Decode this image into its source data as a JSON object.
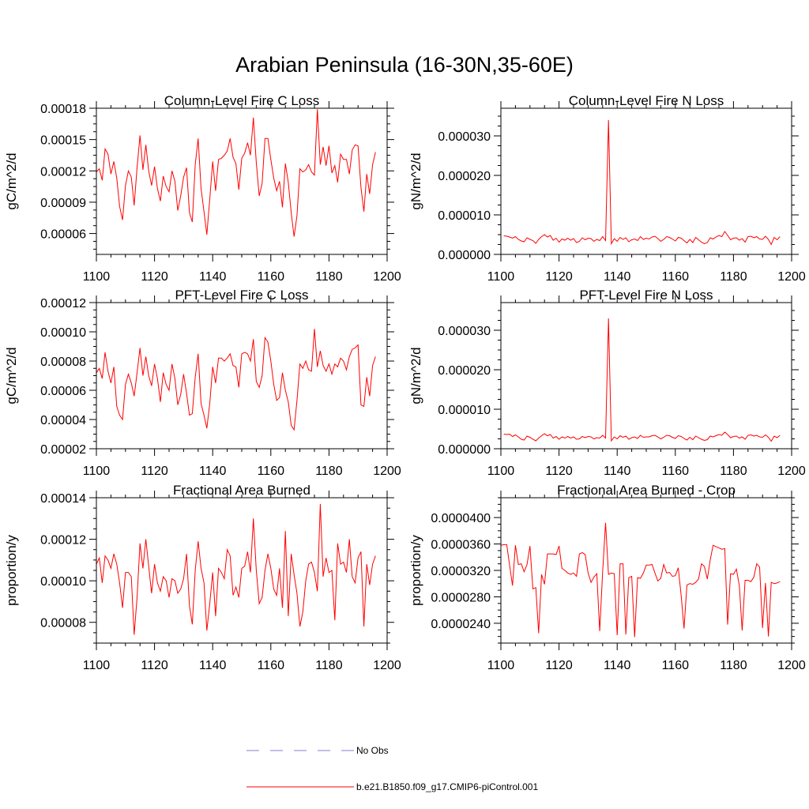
{
  "title": "Arabian Peninsula (16-30N,35-60E)",
  "colors": {
    "model": "#ff0000",
    "obs": "#7f7fd0"
  },
  "legend": [
    {
      "label": "No Obs",
      "style": "dashed"
    },
    {
      "label": "b.e21.B1850.f09_g17.CMIP6-piControl.001",
      "style": "solid"
    }
  ],
  "chart_data": [
    {
      "type": "line",
      "title": "Column-Level Fire C Loss",
      "ylabel": "gC/m^2/d",
      "xlim": [
        1100,
        1200
      ],
      "ylim": [
        4e-05,
        0.00018
      ],
      "xticks": [
        "1100",
        "1120",
        "1140",
        "1160",
        "1180",
        "1200"
      ],
      "yticks": [
        {
          "value": 6e-05,
          "label": "0.00006"
        },
        {
          "value": 9e-05,
          "label": "0.00009"
        },
        {
          "value": 0.00012,
          "label": "0.00012"
        },
        {
          "value": 0.00015,
          "label": "0.00015"
        },
        {
          "value": 0.00018,
          "label": "0.00018"
        }
      ],
      "x_start": 1100,
      "x_step": 1,
      "series": [
        {
          "name": "b.e21.B1850.f09_g17.CMIP6-piControl.001",
          "values": [
            0.000119,
            0.000122,
            0.000111,
            0.000141,
            0.000136,
            0.000117,
            0.000129,
            0.000113,
            8.6e-05,
            7.3e-05,
            0.000106,
            0.00012,
            0.000114,
            8.7e-05,
            0.000123,
            0.000154,
            0.000121,
            0.000145,
            0.00012,
            0.000106,
            0.000124,
            0.000103,
            9.1e-05,
            0.000115,
            0.000105,
            0.0001,
            0.00012,
            0.00011,
            8.2e-05,
            9.6e-05,
            0.000114,
            0.000123,
            8e-05,
            7.1e-05,
            0.000126,
            0.000151,
            0.000103,
            8.1e-05,
            5.9e-05,
            9.3e-05,
            0.000129,
            0.000101,
            0.000131,
            0.000132,
            0.000135,
            0.000139,
            0.000151,
            0.000133,
            0.000127,
            0.000102,
            0.000132,
            0.000137,
            0.000147,
            0.000135,
            0.000171,
            0.000128,
            9.6e-05,
            0.000108,
            0.000151,
            0.000151,
            0.000131,
            0.000113,
            0.000101,
            0.00011,
            8.5e-05,
            0.000127,
            0.000109,
            8e-05,
            5.7e-05,
            7.7e-05,
            0.000122,
            0.000119,
            0.000121,
            0.000126,
            0.000119,
            0.000116,
            0.000179,
            0.000126,
            0.000143,
            0.000125,
            0.000144,
            0.000118,
            0.000125,
            0.000109,
            0.000136,
            0.000131,
            0.000131,
            0.000117,
            0.00014,
            0.000145,
            0.000144,
            0.000104,
            8.1e-05,
            0.000117,
            9.8e-05,
            0.000126,
            0.000138
          ]
        }
      ]
    },
    {
      "type": "line",
      "title": "Column-Level Fire N Loss",
      "ylabel": "gN/m^2/d",
      "xlim": [
        1100,
        1200
      ],
      "ylim": [
        0,
        3.7e-05
      ],
      "xticks": [
        "1100",
        "1120",
        "1140",
        "1160",
        "1180",
        "1200"
      ],
      "yticks": [
        {
          "value": 0,
          "label": "0.000000"
        },
        {
          "value": 1e-05,
          "label": "0.000010"
        },
        {
          "value": 2e-05,
          "label": "0.000020"
        },
        {
          "value": 3e-05,
          "label": "0.000030"
        }
      ],
      "x_start": 1101,
      "x_step": 1,
      "series": [
        {
          "name": "b.e21.B1850.f09_g17.CMIP6-piControl.001",
          "values": [
            4.7e-06,
            4.6e-06,
            4.4e-06,
            4.1e-06,
            4.5e-06,
            3.8e-06,
            3.4e-06,
            3.2e-06,
            4.2e-06,
            3.8e-06,
            3.5e-06,
            2.8e-06,
            3.8e-06,
            4.5e-06,
            5e-06,
            4.4e-06,
            4.8e-06,
            3.6e-06,
            4.1e-06,
            3.1e-06,
            3.9e-06,
            3.6e-06,
            4.1e-06,
            3.6e-06,
            4e-06,
            3e-06,
            3.3e-06,
            4.2e-06,
            3.7e-06,
            4.1e-06,
            4e-06,
            3.3e-06,
            3.8e-06,
            3.5e-06,
            4.5e-06,
            3.5e-06,
            3.4e-05,
            2.7e-06,
            4e-06,
            3.3e-06,
            4.3e-06,
            3.8e-06,
            4.2e-06,
            3.2e-06,
            3.7e-06,
            3.9e-06,
            3.5e-06,
            4.5e-06,
            3.8e-06,
            4.1e-06,
            3.9e-06,
            4.4e-06,
            4.6e-06,
            4e-06,
            3.3e-06,
            3.8e-06,
            4.5e-06,
            4.3e-06,
            3.9e-06,
            3.4e-06,
            4.3e-06,
            4.1e-06,
            3.5e-06,
            2.9e-06,
            3.8e-06,
            3e-06,
            4.3e-06,
            3.7e-06,
            3.1e-06,
            2.7e-06,
            3e-06,
            4.2e-06,
            3.9e-06,
            4.4e-06,
            4.8e-06,
            4.5e-06,
            5.8e-06,
            4.8e-06,
            3.7e-06,
            4.1e-06,
            4.2e-06,
            3.6e-06,
            4e-06,
            3.1e-06,
            4.5e-06,
            4.6e-06,
            4.2e-06,
            4.5e-06,
            3.9e-06,
            3.8e-06,
            4.6e-06,
            3.8e-06,
            2.5e-06,
            4.3e-06,
            3.7e-06,
            4.5e-06
          ]
        }
      ]
    },
    {
      "type": "line",
      "title": "PFT-Level Fire C Loss",
      "ylabel": "gC/m^2/d",
      "xlim": [
        1100,
        1200
      ],
      "ylim": [
        2e-05,
        0.00012
      ],
      "xticks": [
        "1100",
        "1120",
        "1140",
        "1160",
        "1180",
        "1200"
      ],
      "yticks": [
        {
          "value": 2e-05,
          "label": "0.00002"
        },
        {
          "value": 4e-05,
          "label": "0.00004"
        },
        {
          "value": 6e-05,
          "label": "0.00006"
        },
        {
          "value": 8e-05,
          "label": "0.00008"
        },
        {
          "value": 0.0001,
          "label": "0.00010"
        },
        {
          "value": 0.00012,
          "label": "0.00012"
        }
      ],
      "x_start": 1100,
      "x_step": 1,
      "series": [
        {
          "name": "b.e21.B1850.f09_g17.CMIP6-piControl.001",
          "values": [
            7.2e-05,
            7.5e-05,
            6.8e-05,
            8.6e-05,
            7.3e-05,
            6.5e-05,
            7.6e-05,
            4.9e-05,
            4.3e-05,
            4e-05,
            6.4e-05,
            7.1e-05,
            6.5e-05,
            5.6e-05,
            7.2e-05,
            8.9e-05,
            7e-05,
            8.3e-05,
            7e-05,
            6.3e-05,
            7.8e-05,
            6.8e-05,
            5.2e-05,
            7.2e-05,
            6.4e-05,
            6e-05,
            7.8e-05,
            6.8e-05,
            5e-05,
            5.7e-05,
            7.1e-05,
            5.8e-05,
            4.3e-05,
            4.4e-05,
            6.9e-05,
            8.5e-05,
            5.1e-05,
            4.3e-05,
            3.4e-05,
            5.1e-05,
            7.6e-05,
            6.5e-05,
            8.2e-05,
            8.2e-05,
            8e-05,
            8.2e-05,
            8.5e-05,
            7.7e-05,
            7.6e-05,
            6.2e-05,
            8.5e-05,
            8.6e-05,
            8.5e-05,
            8e-05,
            9.5e-05,
            6.6e-05,
            6.2e-05,
            7e-05,
            9.6e-05,
            9.3e-05,
            8e-05,
            6.4e-05,
            5.3e-05,
            5.5e-05,
            7.2e-05,
            6e-05,
            5.2e-05,
            3.6e-05,
            3.3e-05,
            5.3e-05,
            7.8e-05,
            7.5e-05,
            8e-05,
            7.4e-05,
            7.3e-05,
            0.000102,
            7.6e-05,
            8.7e-05,
            7.7e-05,
            7.3e-05,
            7.8e-05,
            7.1e-05,
            7.8e-05,
            7.6e-05,
            8.2e-05,
            8e-05,
            7.4e-05,
            8.3e-05,
            8.8e-05,
            8.9e-05,
            9.1e-05,
            5e-05,
            4.9e-05,
            6.9e-05,
            5.6e-05,
            7.7e-05,
            8.3e-05
          ]
        }
      ]
    },
    {
      "type": "line",
      "title": "PFT-Level Fire N Loss",
      "ylabel": "gN/m^2/d",
      "xlim": [
        1100,
        1200
      ],
      "ylim": [
        0,
        3.7e-05
      ],
      "xticks": [
        "1100",
        "1120",
        "1140",
        "1160",
        "1180",
        "1200"
      ],
      "yticks": [
        {
          "value": 0,
          "label": "0.000000"
        },
        {
          "value": 1e-05,
          "label": "0.000010"
        },
        {
          "value": 2e-05,
          "label": "0.000020"
        },
        {
          "value": 3e-05,
          "label": "0.000030"
        }
      ],
      "x_start": 1101,
      "x_step": 1,
      "series": [
        {
          "name": "b.e21.B1850.f09_g17.CMIP6-piControl.001",
          "values": [
            3.7e-06,
            3.6e-06,
            3.7e-06,
            3.1e-06,
            3.5e-06,
            3e-06,
            2.4e-06,
            2.2e-06,
            3.2e-06,
            2.9e-06,
            2.4e-06,
            2e-06,
            2.7e-06,
            3.3e-06,
            3.8e-06,
            3.3e-06,
            3.6e-06,
            2.7e-06,
            3.1e-06,
            2.4e-06,
            3e-06,
            2.7e-06,
            3.1e-06,
            2.7e-06,
            3e-06,
            2.4e-06,
            2.5e-06,
            3.1e-06,
            2.8e-06,
            3.1e-06,
            3e-06,
            2.5e-06,
            2.8e-06,
            2.7e-06,
            3.4e-06,
            2.7e-06,
            3.3e-05,
            2e-06,
            3e-06,
            2.5e-06,
            3.3e-06,
            2.9e-06,
            3.2e-06,
            2.4e-06,
            2.8e-06,
            3e-06,
            2.6e-06,
            3.4e-06,
            2.9e-06,
            3e-06,
            3e-06,
            3.3e-06,
            3.4e-06,
            3e-06,
            2.5e-06,
            2.9e-06,
            3.4e-06,
            3.3e-06,
            2.9e-06,
            2.6e-06,
            3.3e-06,
            3.1e-06,
            2.6e-06,
            2.2e-06,
            2.9e-06,
            2.3e-06,
            3.2e-06,
            2.8e-06,
            2.4e-06,
            2.1e-06,
            2.3e-06,
            3.2e-06,
            3e-06,
            3.3e-06,
            3.6e-06,
            3.4e-06,
            4.2e-06,
            3.6e-06,
            2.8e-06,
            3.1e-06,
            3.2e-06,
            2.7e-06,
            3e-06,
            2.4e-06,
            3.4e-06,
            3.5e-06,
            3.2e-06,
            3.4e-06,
            3e-06,
            2.9e-06,
            3.5e-06,
            2.9e-06,
            1.9e-06,
            3.2e-06,
            2.8e-06,
            3.4e-06
          ]
        }
      ]
    },
    {
      "type": "line",
      "title": "Fractional Area Burned",
      "ylabel": "proportion/y",
      "xlim": [
        1100,
        1200
      ],
      "ylim": [
        7e-05,
        0.00014
      ],
      "xticks": [
        "1100",
        "1120",
        "1140",
        "1160",
        "1180",
        "1200"
      ],
      "yticks": [
        {
          "value": 8e-05,
          "label": "0.00008"
        },
        {
          "value": 0.0001,
          "label": "0.00010"
        },
        {
          "value": 0.00012,
          "label": "0.00012"
        },
        {
          "value": 0.00014,
          "label": "0.00014"
        }
      ],
      "x_start": 1100,
      "x_step": 1,
      "series": [
        {
          "name": "b.e21.B1850.f09_g17.CMIP6-piControl.001",
          "values": [
            0.000108,
            0.000111,
            9.9e-05,
            0.000112,
            0.00011,
            0.000106,
            0.000113,
            0.000108,
            9.9e-05,
            8.7e-05,
            0.000104,
            0.000104,
            0.000102,
            7.4e-05,
            9.2e-05,
            0.000118,
            0.000106,
            0.00012,
            0.000107,
            9.4e-05,
            0.000108,
            9.9e-05,
            9.5e-05,
            0.000102,
            0.0001,
            9.2e-05,
            0.000101,
            0.0001,
            9.4e-05,
            9.6e-05,
            0.000101,
            0.000113,
            8.8e-05,
            7.9e-05,
            0.000105,
            0.000119,
            0.000106,
            9.9e-05,
            7.6e-05,
            8.9e-05,
            0.000104,
            8.3e-05,
            0.000106,
            0.000104,
            0.000101,
            0.000115,
            0.000112,
            9.3e-05,
            9.7e-05,
            9.2e-05,
            0.000106,
            0.000107,
            0.000114,
            0.000104,
            0.00013,
            0.000105,
            8.9e-05,
            9.2e-05,
            0.000105,
            0.000113,
            0.000106,
            9.6e-05,
            9.3e-05,
            0.000106,
            8.7e-05,
            0.000124,
            8.3e-05,
            0.000113,
            0.000103,
            9.4e-05,
            7.8e-05,
            8.5e-05,
            0.0001,
            0.000108,
            0.000109,
            0.000104,
            9.5e-05,
            0.000137,
            0.000102,
            0.000111,
            0.000104,
            0.000105,
            8.1e-05,
            0.000118,
            0.000108,
            0.000109,
            0.000104,
            0.00012,
            0.000102,
            9.9e-05,
            0.000111,
            0.000114,
            7.8e-05,
            0.000108,
            9.8e-05,
            0.000108,
            0.000112
          ]
        }
      ]
    },
    {
      "type": "line",
      "title": "Fractional Area Burned - Crop",
      "ylabel": "proportion/y",
      "xlim": [
        1100,
        1200
      ],
      "ylim": [
        2.1e-05,
        4.3e-05
      ],
      "xticks": [
        "1100",
        "1120",
        "1140",
        "1160",
        "1180",
        "1200"
      ],
      "yticks": [
        {
          "value": 2.4e-05,
          "label": "0.0000240"
        },
        {
          "value": 2.8e-05,
          "label": "0.0000280"
        },
        {
          "value": 3.2e-05,
          "label": "0.0000320"
        },
        {
          "value": 3.6e-05,
          "label": "0.0000360"
        },
        {
          "value": 4e-05,
          "label": "0.0000400"
        }
      ],
      "x_start": 1100,
      "x_step": 1,
      "series": [
        {
          "name": "b.e21.B1850.f09_g17.CMIP6-piControl.001",
          "values": [
            3.58e-05,
            3.59e-05,
            3.59e-05,
            3.28e-05,
            2.97e-05,
            3.58e-05,
            3.29e-05,
            3.3e-05,
            3.18e-05,
            3.29e-05,
            3.57e-05,
            2.92e-05,
            2.94e-05,
            2.25e-05,
            3.14e-05,
            2.99e-05,
            3.45e-05,
            3.45e-05,
            3.45e-05,
            3.44e-05,
            3.57e-05,
            3.23e-05,
            3.2e-05,
            3.16e-05,
            3.14e-05,
            3.16e-05,
            3.11e-05,
            3.45e-05,
            3.47e-05,
            3.44e-05,
            3.16e-05,
            3.02e-05,
            3.1e-05,
            3.15e-05,
            2.28e-05,
            3.18e-05,
            3.92e-05,
            3.14e-05,
            3.16e-05,
            3.15e-05,
            2.22e-05,
            3.3e-05,
            3.3e-05,
            2.23e-05,
            3.09e-05,
            3.11e-05,
            2.19e-05,
            3.09e-05,
            3.08e-05,
            3.16e-05,
            3.28e-05,
            3.28e-05,
            3.29e-05,
            3.16e-05,
            3.04e-05,
            3.08e-05,
            3.29e-05,
            3.16e-05,
            3.17e-05,
            3.11e-05,
            3.12e-05,
            3.24e-05,
            2.82e-05,
            2.32e-05,
            2.98e-05,
            3e-05,
            2.99e-05,
            3.02e-05,
            3.07e-05,
            3.3e-05,
            3.26e-05,
            3.07e-05,
            3.36e-05,
            3.58e-05,
            3.56e-05,
            3.54e-05,
            3.52e-05,
            3.53e-05,
            2.38e-05,
            3.15e-05,
            3.14e-05,
            3.22e-05,
            2.97e-05,
            2.29e-05,
            3.05e-05,
            3.05e-05,
            3.03e-05,
            3.1e-05,
            3.3e-05,
            3.25e-05,
            2.33e-05,
            3.01e-05,
            2.2e-05,
            3.02e-05,
            3e-05,
            3.01e-05,
            3.03e-05
          ]
        }
      ]
    }
  ]
}
